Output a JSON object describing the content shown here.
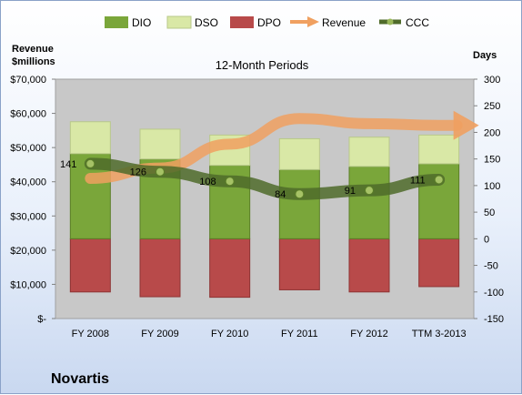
{
  "chart_data": {
    "type": "bar",
    "title": "12-Month Periods",
    "footer_title": "Novartis",
    "left_axis_label": [
      "Revenue",
      "$millions"
    ],
    "right_axis_label": "Days",
    "categories": [
      "FY 2008",
      "FY 2009",
      "FY 2010",
      "FY 2011",
      "FY 2012",
      "TTM 3-2013"
    ],
    "left_axis": {
      "min": 0,
      "max": 70000,
      "step": 10000,
      "ticks": [
        "$-",
        "$10,000",
        "$20,000",
        "$30,000",
        "$40,000",
        "$50,000",
        "$60,000",
        "$70,000"
      ]
    },
    "right_axis": {
      "min": -150,
      "max": 300,
      "step": 50,
      "ticks": [
        "-150",
        "-100",
        "-50",
        "0",
        "50",
        "100",
        "150",
        "200",
        "250",
        "300"
      ]
    },
    "series": [
      {
        "name": "DIO",
        "kind": "stacked-bar",
        "values": [
          160,
          150,
          138,
          130,
          136,
          141
        ]
      },
      {
        "name": "DSO",
        "kind": "stacked-bar",
        "values": [
          60,
          56,
          57,
          58,
          55,
          54
        ]
      },
      {
        "name": "DPO",
        "kind": "negative-bar",
        "values": [
          -100,
          -109,
          -110,
          -96,
          -100,
          -90
        ]
      },
      {
        "name": "Revenue",
        "kind": "arrow-line",
        "axis": "left",
        "values": [
          41000,
          44000,
          51000,
          58500,
          57000,
          56500
        ]
      },
      {
        "name": "CCC",
        "kind": "line",
        "axis": "right",
        "values": [
          141,
          126,
          108,
          84,
          91,
          111
        ]
      }
    ],
    "data_labels": [
      "141",
      "126",
      "108",
      "84",
      "91",
      "111"
    ],
    "legend_position": "top",
    "grid": false,
    "colors": {
      "DIO": "#7aa63a",
      "DSO": "#d9e8a6",
      "DPO": "#b84a4a",
      "Revenue": "#f0a060",
      "CCC": "#4f6b2a"
    }
  }
}
